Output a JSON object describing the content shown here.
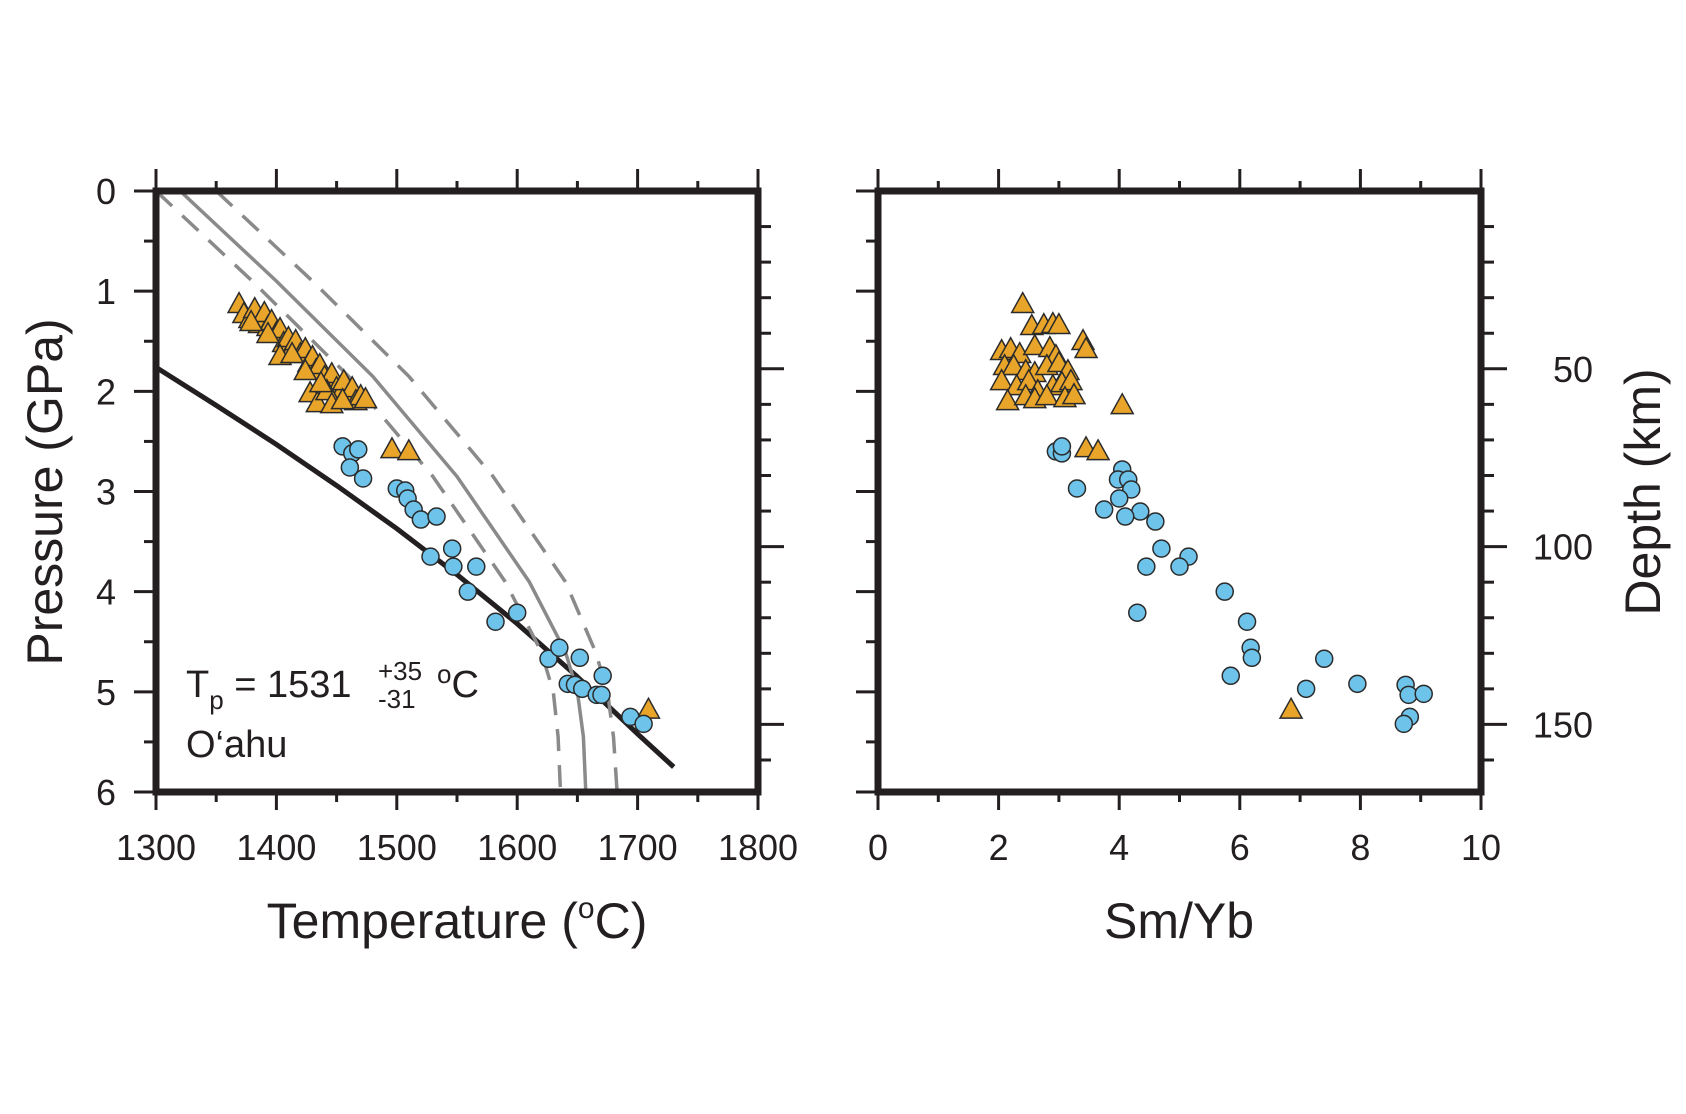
{
  "colors": {
    "triangle_fill": "#e8a52a",
    "circle_fill": "#6ec3ea",
    "marker_edge": "#2b2b2b",
    "solidus": "#231f20",
    "adiabat": "#8a8a8a"
  },
  "chart_data": [
    {
      "id": "left",
      "type": "scatter",
      "xlabel": "Temperature",
      "xlabel_unit": "C",
      "xlabel_unit_sup": "o",
      "ylabel": "Pressure (GPa)",
      "xlim": [
        1300,
        1800
      ],
      "ylim": [
        6,
        0
      ],
      "y_inverted": true,
      "x_ticks": [
        1300,
        1400,
        1500,
        1600,
        1700,
        1800
      ],
      "y_ticks": [
        0,
        1,
        2,
        3,
        4,
        5,
        6
      ],
      "right_axis": {
        "label": "",
        "ticks": [
          50,
          100,
          150
        ],
        "tick_labels_shown": false,
        "unit_note": "depth km, unlabeled"
      },
      "annotation": {
        "lhs": "T",
        "lhs_sub": "p",
        "equals": " = ",
        "value": "1531",
        "plus": "+35",
        "minus": "-31",
        "unit_sup": "o",
        "unit": "C",
        "location": "O‘ahu"
      },
      "lines": [
        {
          "role": "solidus",
          "style": "solid",
          "points": [
            [
              1300,
              1.76
            ],
            [
              1350,
              2.14
            ],
            [
              1400,
              2.53
            ],
            [
              1450,
              2.94
            ],
            [
              1500,
              3.37
            ],
            [
              1550,
              3.83
            ],
            [
              1600,
              4.32
            ],
            [
              1650,
              4.85
            ],
            [
              1700,
              5.42
            ],
            [
              1730,
              5.75
            ]
          ]
        },
        {
          "role": "adiabat",
          "style": "solid",
          "points": [
            [
              1320,
              0.0
            ],
            [
              1400,
              0.9
            ],
            [
              1480,
              1.85
            ],
            [
              1550,
              2.85
            ],
            [
              1610,
              3.9
            ],
            [
              1640,
              4.6
            ],
            [
              1650,
              5.0
            ],
            [
              1655,
              5.45
            ],
            [
              1657,
              6.0
            ]
          ]
        },
        {
          "role": "adiabat-lower",
          "style": "dashed",
          "points": [
            [
              1300,
              0.0
            ],
            [
              1380,
              0.9
            ],
            [
              1460,
              1.85
            ],
            [
              1530,
              2.85
            ],
            [
              1590,
              3.9
            ],
            [
              1620,
              4.6
            ],
            [
              1630,
              5.0
            ],
            [
              1634,
              5.45
            ],
            [
              1636,
              6.0
            ]
          ]
        },
        {
          "role": "adiabat-upper",
          "style": "dashed",
          "points": [
            [
              1350,
              0.0
            ],
            [
              1430,
              0.9
            ],
            [
              1510,
              1.85
            ],
            [
              1580,
              2.85
            ],
            [
              1640,
              3.9
            ],
            [
              1665,
              4.6
            ],
            [
              1675,
              5.0
            ],
            [
              1680,
              5.45
            ],
            [
              1683,
              6.0
            ]
          ]
        }
      ],
      "series": [
        {
          "marker": "triangle",
          "points": [
            [
              1369,
              1.13
            ],
            [
              1373,
              1.23
            ],
            [
              1378,
              1.28
            ],
            [
              1382,
              1.18
            ],
            [
              1386,
              1.33
            ],
            [
              1390,
              1.22
            ],
            [
              1393,
              1.36
            ],
            [
              1396,
              1.3
            ],
            [
              1400,
              1.42
            ],
            [
              1403,
              1.38
            ],
            [
              1406,
              1.52
            ],
            [
              1410,
              1.47
            ],
            [
              1413,
              1.58
            ],
            [
              1416,
              1.5
            ],
            [
              1420,
              1.63
            ],
            [
              1424,
              1.58
            ],
            [
              1427,
              1.72
            ],
            [
              1430,
              1.66
            ],
            [
              1433,
              1.79
            ],
            [
              1436,
              1.74
            ],
            [
              1440,
              1.86
            ],
            [
              1443,
              1.92
            ],
            [
              1446,
              1.83
            ],
            [
              1450,
              1.97
            ],
            [
              1453,
              2.03
            ],
            [
              1456,
              1.9
            ],
            [
              1460,
              2.06
            ],
            [
              1463,
              1.97
            ],
            [
              1466,
              2.1
            ],
            [
              1470,
              2.05
            ],
            [
              1474,
              2.08
            ],
            [
              1403,
              1.65
            ],
            [
              1424,
              1.8
            ],
            [
              1428,
              2.02
            ],
            [
              1434,
              2.12
            ],
            [
              1442,
              2.0
            ],
            [
              1446,
              2.13
            ],
            [
              1455,
              2.09
            ],
            [
              1437,
              1.92
            ],
            [
              1413,
              1.63
            ],
            [
              1393,
              1.43
            ],
            [
              1379,
              1.31
            ],
            [
              1496,
              2.58
            ],
            [
              1510,
              2.6
            ],
            [
              1709,
              5.18
            ]
          ]
        },
        {
          "marker": "circle",
          "points": [
            [
              1455,
              2.55
            ],
            [
              1463,
              2.62
            ],
            [
              1468,
              2.58
            ],
            [
              1461,
              2.76
            ],
            [
              1472,
              2.87
            ],
            [
              1500,
              2.97
            ],
            [
              1507,
              2.99
            ],
            [
              1509,
              3.07
            ],
            [
              1514,
              3.18
            ],
            [
              1520,
              3.28
            ],
            [
              1533,
              3.25
            ],
            [
              1528,
              3.65
            ],
            [
              1546,
              3.57
            ],
            [
              1547,
              3.75
            ],
            [
              1559,
              4.0
            ],
            [
              1566,
              3.75
            ],
            [
              1582,
              4.3
            ],
            [
              1600,
              4.21
            ],
            [
              1626,
              4.67
            ],
            [
              1635,
              4.56
            ],
            [
              1642,
              4.92
            ],
            [
              1648,
              4.93
            ],
            [
              1654,
              4.97
            ],
            [
              1652,
              4.66
            ],
            [
              1666,
              5.03
            ],
            [
              1671,
              4.84
            ],
            [
              1670,
              5.03
            ],
            [
              1694,
              5.25
            ],
            [
              1705,
              5.32
            ]
          ]
        }
      ]
    },
    {
      "id": "right",
      "type": "scatter",
      "xlabel": "Sm/Yb",
      "ylabel": "Depth (km)",
      "xlim": [
        0,
        10
      ],
      "ylim": [
        6,
        0
      ],
      "y_inverted": true,
      "x_ticks": [
        0,
        2,
        4,
        6,
        8,
        10
      ],
      "y_ticks": [
        0,
        1,
        2,
        3,
        4,
        5,
        6
      ],
      "left_axis": {
        "label": "",
        "tick_labels_shown": false,
        "unit_note": "pressure GPa, unlabeled"
      },
      "right_axis": {
        "label": "Depth (km)",
        "ticks": [
          50,
          100,
          150
        ],
        "tick_labels": [
          "50",
          "100",
          "150"
        ]
      },
      "series": [
        {
          "marker": "triangle",
          "points": [
            [
              2.4,
              1.13
            ],
            [
              2.55,
              1.35
            ],
            [
              2.75,
              1.34
            ],
            [
              2.9,
              1.33
            ],
            [
              3.0,
              1.34
            ],
            [
              3.4,
              1.5
            ],
            [
              3.45,
              1.58
            ],
            [
              2.05,
              1.6
            ],
            [
              2.2,
              1.58
            ],
            [
              2.35,
              1.63
            ],
            [
              2.6,
              1.55
            ],
            [
              2.85,
              1.57
            ],
            [
              2.95,
              1.65
            ],
            [
              2.1,
              1.75
            ],
            [
              2.25,
              1.75
            ],
            [
              2.45,
              1.8
            ],
            [
              2.6,
              1.82
            ],
            [
              2.8,
              1.75
            ],
            [
              3.0,
              1.72
            ],
            [
              3.15,
              1.8
            ],
            [
              2.05,
              1.9
            ],
            [
              2.3,
              1.95
            ],
            [
              2.5,
              1.9
            ],
            [
              2.65,
              2.0
            ],
            [
              2.9,
              1.95
            ],
            [
              3.05,
              1.92
            ],
            [
              3.2,
              1.9
            ],
            [
              2.15,
              2.1
            ],
            [
              2.45,
              2.05
            ],
            [
              2.6,
              2.08
            ],
            [
              2.8,
              2.05
            ],
            [
              3.1,
              2.07
            ],
            [
              3.25,
              2.04
            ],
            [
              4.05,
              2.14
            ],
            [
              3.45,
              2.57
            ],
            [
              3.65,
              2.6
            ],
            [
              6.85,
              5.18
            ]
          ]
        },
        {
          "marker": "circle",
          "points": [
            [
              2.95,
              2.6
            ],
            [
              3.05,
              2.62
            ],
            [
              3.05,
              2.55
            ],
            [
              4.05,
              2.78
            ],
            [
              3.98,
              2.88
            ],
            [
              4.15,
              2.88
            ],
            [
              4.2,
              2.98
            ],
            [
              3.3,
              2.97
            ],
            [
              4.0,
              3.07
            ],
            [
              3.75,
              3.18
            ],
            [
              4.35,
              3.2
            ],
            [
              4.1,
              3.25
            ],
            [
              4.6,
              3.3
            ],
            [
              4.7,
              3.57
            ],
            [
              5.15,
              3.65
            ],
            [
              4.45,
              3.75
            ],
            [
              5.0,
              3.75
            ],
            [
              5.75,
              4.0
            ],
            [
              4.3,
              4.21
            ],
            [
              6.12,
              4.3
            ],
            [
              6.18,
              4.56
            ],
            [
              6.2,
              4.66
            ],
            [
              7.4,
              4.67
            ],
            [
              5.85,
              4.84
            ],
            [
              7.95,
              4.92
            ],
            [
              7.1,
              4.97
            ],
            [
              8.75,
              4.93
            ],
            [
              8.8,
              5.03
            ],
            [
              9.05,
              5.02
            ],
            [
              8.82,
              5.25
            ],
            [
              8.72,
              5.32
            ]
          ]
        }
      ]
    }
  ]
}
